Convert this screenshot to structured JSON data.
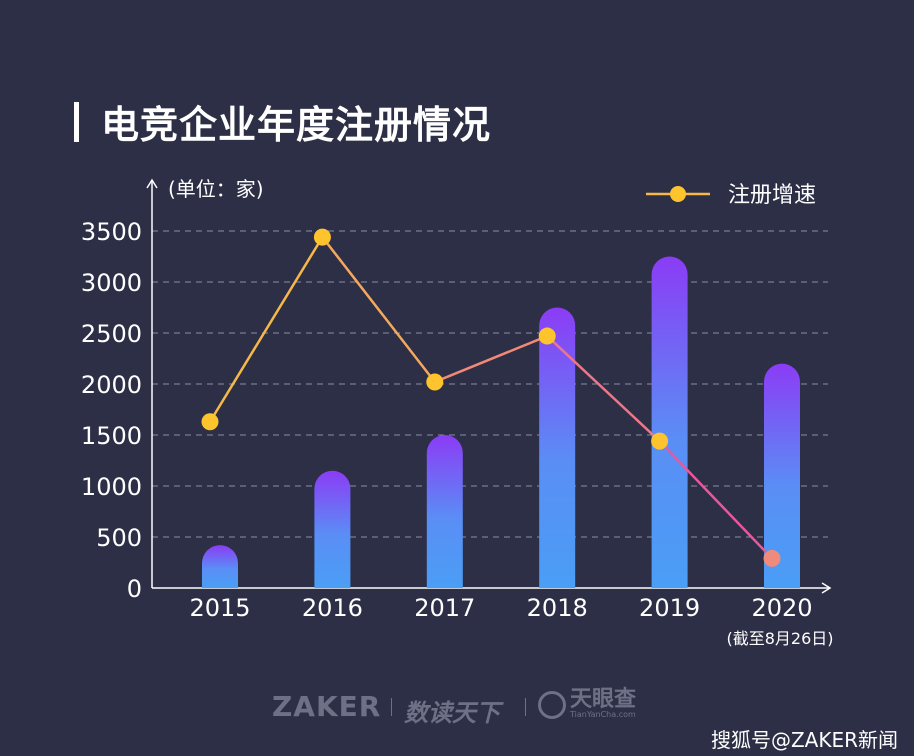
{
  "title": "电竞企业年度注册情况",
  "unit_label": "(单位：家)",
  "legend_label": "注册增速",
  "x_note": "(截至8月26日)",
  "footer": {
    "brand_zaker": "ZAKER",
    "brand_shudu": "数读天下",
    "brand_tyc": "天眼查",
    "brand_tyc_sub": "TianYanCha.com",
    "source": "搜狐号@ZAKER新闻"
  },
  "colors": {
    "background": "#2c2f45",
    "bar_bottom": "#4a9ef5",
    "bar_top": "#8b3cf5",
    "line_start": "#f6b84a",
    "line_end": "#e8589a",
    "marker": "#fec42e",
    "marker_last": "#f08a7a"
  },
  "chart_data": {
    "type": "bar",
    "categories": [
      "2015",
      "2016",
      "2017",
      "2018",
      "2019",
      "2020"
    ],
    "ylim": [
      0,
      3500
    ],
    "yticks": [
      0,
      500,
      1000,
      1500,
      2000,
      2500,
      3000,
      3500
    ],
    "series": [
      {
        "values": [
          420,
          1150,
          1500,
          2750,
          3250,
          2200
        ]
      },
      {
        "name": "注册增速",
        "kind": "line",
        "values": [
          1630,
          3440,
          2020,
          2470,
          1440,
          290
        ]
      }
    ],
    "grid": true,
    "legend_position": "top-right"
  }
}
